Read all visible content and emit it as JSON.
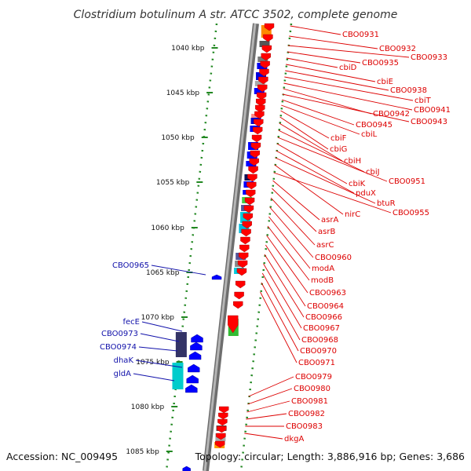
{
  "title": "Clostridium botulinum A str. ATCC 3502, complete genome",
  "footer": {
    "accession": "Accession: NC_009495",
    "summary": "Topology: circular; Length: 3,886,916 bp; Genes: 3,686"
  },
  "colors": {
    "forward_label": "#dd0000",
    "reverse_label": "#1111aa",
    "forward_gene": "#ff0000",
    "reverse_gene": "#0000ff",
    "tick": "#228822",
    "backbone": "#8c8c8c"
  },
  "scale": {
    "unit": "kbp",
    "ticks": [
      1040,
      1045,
      1050,
      1055,
      1060,
      1065,
      1070,
      1075,
      1080,
      1085
    ]
  },
  "forward_genes": [
    {
      "label": "CBO0931"
    },
    {
      "label": "CBO0932"
    },
    {
      "label": "CBO0933"
    },
    {
      "label": "CBO0935"
    },
    {
      "label": "cbiD"
    },
    {
      "label": "cbiE"
    },
    {
      "label": "CBO0938"
    },
    {
      "label": "cbiT"
    },
    {
      "label": "CBO0941"
    },
    {
      "label": "CBO0942"
    },
    {
      "label": "CBO0943"
    },
    {
      "label": "CBO0945"
    },
    {
      "label": "cbiL"
    },
    {
      "label": "cbiF"
    },
    {
      "label": "cbiG"
    },
    {
      "label": "cbiH"
    },
    {
      "label": "cbiJ"
    },
    {
      "label": "CBO0951"
    },
    {
      "label": "cbiK"
    },
    {
      "label": "pduX"
    },
    {
      "label": "btuR"
    },
    {
      "label": "nirC"
    },
    {
      "label": "CBO0955"
    },
    {
      "label": "asrA"
    },
    {
      "label": "asrB"
    },
    {
      "label": "asrC"
    },
    {
      "label": "CBO0960"
    },
    {
      "label": "modA"
    },
    {
      "label": "modB"
    },
    {
      "label": "CBO0963"
    },
    {
      "label": "CBO0964"
    },
    {
      "label": "CBO0966"
    },
    {
      "label": "CBO0967"
    },
    {
      "label": "CBO0968"
    },
    {
      "label": "CBO0970"
    },
    {
      "label": "CBO0971"
    },
    {
      "label": "CBO0979"
    },
    {
      "label": "CBO0980"
    },
    {
      "label": "CBO0981"
    },
    {
      "label": "CBO0982"
    },
    {
      "label": "CBO0983"
    },
    {
      "label": "dkgA"
    }
  ],
  "reverse_genes": [
    {
      "label": "CBO0965"
    },
    {
      "label": "fecE"
    },
    {
      "label": "CBO0973"
    },
    {
      "label": "CBO0974"
    },
    {
      "label": "dhaK"
    },
    {
      "label": "gldA"
    }
  ]
}
